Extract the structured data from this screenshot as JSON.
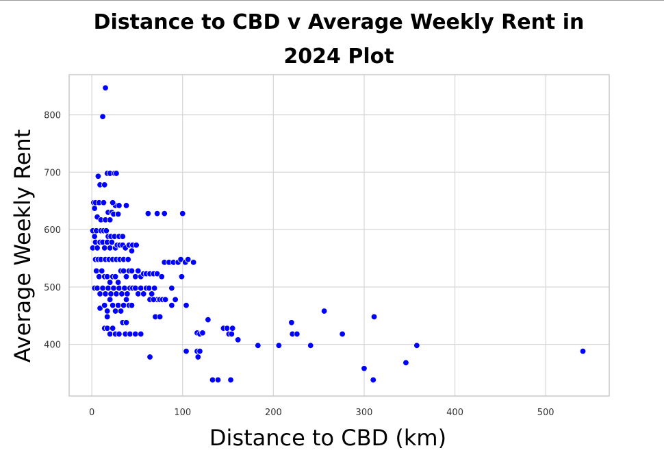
{
  "chart_data": {
    "type": "scatter",
    "title": "Distance to CBD v Average Weekly Rent  in 2024 Plot",
    "xlabel": "Distance to CBD (km)",
    "ylabel": "Average Weekly Rent",
    "xlim": [
      -25,
      570
    ],
    "ylim": [
      310,
      870
    ],
    "xticks": [
      0,
      100,
      200,
      300,
      400,
      500
    ],
    "yticks": [
      400,
      500,
      600,
      700,
      800
    ],
    "grid": true,
    "point_color": "#0000ff",
    "points": [
      [
        15,
        847
      ],
      [
        12,
        797
      ],
      [
        7,
        693
      ],
      [
        9,
        678
      ],
      [
        14,
        678
      ],
      [
        17,
        698
      ],
      [
        20,
        698
      ],
      [
        25,
        698
      ],
      [
        27,
        698
      ],
      [
        2,
        647
      ],
      [
        4,
        647
      ],
      [
        8,
        647
      ],
      [
        13,
        647
      ],
      [
        3,
        637
      ],
      [
        6,
        622
      ],
      [
        10,
        617
      ],
      [
        15,
        617
      ],
      [
        20,
        617
      ],
      [
        18,
        630
      ],
      [
        22,
        630
      ],
      [
        24,
        627
      ],
      [
        26,
        642
      ],
      [
        29,
        627
      ],
      [
        30,
        642
      ],
      [
        38,
        642
      ],
      [
        23,
        647
      ],
      [
        62,
        628
      ],
      [
        72,
        628
      ],
      [
        80,
        628
      ],
      [
        100,
        628
      ],
      [
        1,
        598
      ],
      [
        3,
        588
      ],
      [
        5,
        598
      ],
      [
        10,
        598
      ],
      [
        13,
        598
      ],
      [
        16,
        598
      ],
      [
        18,
        588
      ],
      [
        21,
        588
      ],
      [
        25,
        588
      ],
      [
        30,
        588
      ],
      [
        34,
        588
      ],
      [
        1,
        568
      ],
      [
        4,
        578
      ],
      [
        6,
        568
      ],
      [
        9,
        578
      ],
      [
        12,
        578
      ],
      [
        14,
        568
      ],
      [
        17,
        578
      ],
      [
        20,
        568
      ],
      [
        22,
        578
      ],
      [
        26,
        568
      ],
      [
        28,
        573
      ],
      [
        31,
        573
      ],
      [
        34,
        573
      ],
      [
        37,
        568
      ],
      [
        41,
        573
      ],
      [
        45,
        573
      ],
      [
        49,
        573
      ],
      [
        4,
        548
      ],
      [
        7,
        548
      ],
      [
        10,
        548
      ],
      [
        15,
        548
      ],
      [
        19,
        548
      ],
      [
        23,
        548
      ],
      [
        27,
        548
      ],
      [
        31,
        548
      ],
      [
        35,
        548
      ],
      [
        40,
        548
      ],
      [
        44,
        563
      ],
      [
        80,
        543
      ],
      [
        85,
        543
      ],
      [
        90,
        543
      ],
      [
        95,
        543
      ],
      [
        98,
        548
      ],
      [
        103,
        543
      ],
      [
        106,
        548
      ],
      [
        112,
        543
      ],
      [
        5,
        528
      ],
      [
        8,
        518
      ],
      [
        11,
        528
      ],
      [
        14,
        518
      ],
      [
        17,
        518
      ],
      [
        20,
        508
      ],
      [
        23,
        518
      ],
      [
        26,
        518
      ],
      [
        29,
        508
      ],
      [
        32,
        528
      ],
      [
        35,
        528
      ],
      [
        38,
        518
      ],
      [
        41,
        528
      ],
      [
        44,
        528
      ],
      [
        48,
        518
      ],
      [
        51,
        528
      ],
      [
        54,
        518
      ],
      [
        57,
        523
      ],
      [
        60,
        523
      ],
      [
        64,
        523
      ],
      [
        68,
        523
      ],
      [
        72,
        523
      ],
      [
        77,
        518
      ],
      [
        99,
        518
      ],
      [
        3,
        498
      ],
      [
        6,
        498
      ],
      [
        9,
        488
      ],
      [
        12,
        498
      ],
      [
        15,
        488
      ],
      [
        18,
        498
      ],
      [
        21,
        488
      ],
      [
        24,
        498
      ],
      [
        27,
        488
      ],
      [
        30,
        498
      ],
      [
        33,
        488
      ],
      [
        36,
        498
      ],
      [
        39,
        488
      ],
      [
        42,
        498
      ],
      [
        45,
        498
      ],
      [
        48,
        498
      ],
      [
        51,
        488
      ],
      [
        54,
        498
      ],
      [
        57,
        488
      ],
      [
        60,
        498
      ],
      [
        63,
        498
      ],
      [
        66,
        488
      ],
      [
        69,
        498
      ],
      [
        72,
        478
      ],
      [
        75,
        478
      ],
      [
        78,
        478
      ],
      [
        81,
        478
      ],
      [
        88,
        498
      ],
      [
        92,
        478
      ],
      [
        9,
        463
      ],
      [
        14,
        468
      ],
      [
        17,
        458
      ],
      [
        20,
        478
      ],
      [
        23,
        468
      ],
      [
        26,
        458
      ],
      [
        29,
        468
      ],
      [
        32,
        458
      ],
      [
        35,
        468
      ],
      [
        38,
        478
      ],
      [
        41,
        468
      ],
      [
        44,
        468
      ],
      [
        64,
        478
      ],
      [
        68,
        478
      ],
      [
        17,
        448
      ],
      [
        70,
        448
      ],
      [
        75,
        448
      ],
      [
        88,
        468
      ],
      [
        104,
        468
      ],
      [
        14,
        428
      ],
      [
        17,
        428
      ],
      [
        20,
        418
      ],
      [
        23,
        428
      ],
      [
        26,
        418
      ],
      [
        30,
        418
      ],
      [
        34,
        438
      ],
      [
        38,
        438
      ],
      [
        37,
        418
      ],
      [
        42,
        418
      ],
      [
        48,
        418
      ],
      [
        54,
        418
      ],
      [
        116,
        420
      ],
      [
        119,
        418
      ],
      [
        122,
        420
      ],
      [
        128,
        443
      ],
      [
        145,
        428
      ],
      [
        149,
        428
      ],
      [
        151,
        418
      ],
      [
        154,
        418
      ],
      [
        155,
        428
      ],
      [
        161,
        408
      ],
      [
        220,
        438
      ],
      [
        221,
        418
      ],
      [
        226,
        418
      ],
      [
        256,
        458
      ],
      [
        276,
        418
      ],
      [
        311,
        448
      ],
      [
        64,
        378
      ],
      [
        104,
        388
      ],
      [
        116,
        388
      ],
      [
        119,
        388
      ],
      [
        117,
        378
      ],
      [
        183,
        398
      ],
      [
        206,
        398
      ],
      [
        241,
        398
      ],
      [
        358,
        398
      ],
      [
        541,
        388
      ],
      [
        133,
        338
      ],
      [
        139,
        338
      ],
      [
        153,
        338
      ],
      [
        300,
        358
      ],
      [
        310,
        338
      ],
      [
        346,
        368
      ]
    ]
  }
}
